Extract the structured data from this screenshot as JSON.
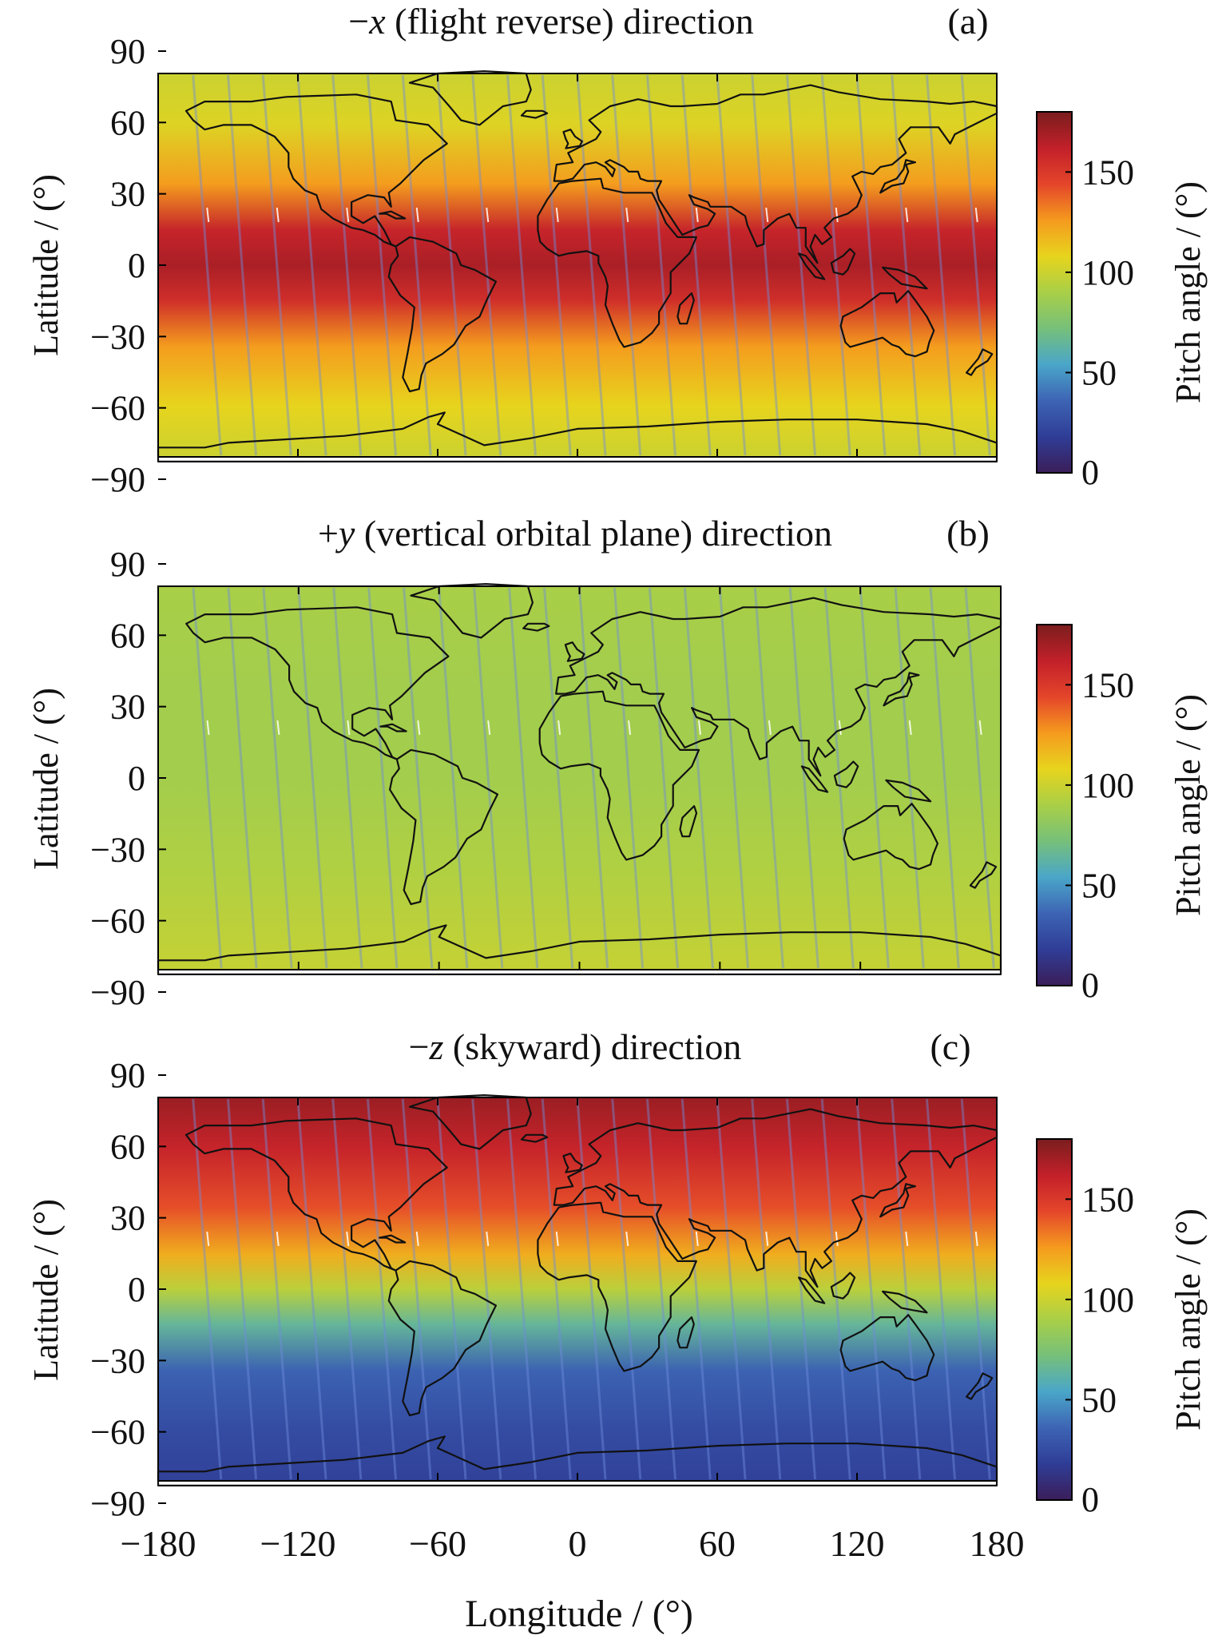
{
  "chart_data": [
    {
      "type": "heatmap",
      "title_prefix": "−",
      "title_var": "x",
      "title_rest": " (flight reverse) direction",
      "panel_label": "(a)",
      "ylabel": "Latitude / (°)",
      "xlim": [
        -180,
        180
      ],
      "ylim": [
        -90,
        90
      ],
      "field_bands": [
        {
          "lat": 82,
          "value": 100
        },
        {
          "lat": 60,
          "value": 105
        },
        {
          "lat": 35,
          "value": 125
        },
        {
          "lat": 15,
          "value": 160
        },
        {
          "lat": 0,
          "value": 168
        },
        {
          "lat": -15,
          "value": 155
        },
        {
          "lat": -35,
          "value": 125
        },
        {
          "lat": -60,
          "value": 108
        },
        {
          "lat": -82,
          "value": 100
        }
      ],
      "colorbar": {
        "label": "Pitch angle / (°)",
        "ticks": [
          "0",
          "50",
          "100",
          "150"
        ],
        "range": [
          0,
          180
        ]
      }
    },
    {
      "type": "heatmap",
      "title_prefix": "+",
      "title_var": "y",
      "title_rest": " (vertical orbital plane) direction",
      "panel_label": "(b)",
      "ylabel": "Latitude / (°)",
      "xlim": [
        -180,
        180
      ],
      "ylim": [
        -90,
        90
      ],
      "field_bands": [
        {
          "lat": 82,
          "value": 90
        },
        {
          "lat": 40,
          "value": 88
        },
        {
          "lat": 0,
          "value": 88
        },
        {
          "lat": -40,
          "value": 92
        },
        {
          "lat": -82,
          "value": 98
        }
      ],
      "colorbar": {
        "label": "Pitch angle / (°)",
        "ticks": [
          "0",
          "50",
          "100",
          "150"
        ],
        "range": [
          0,
          180
        ]
      }
    },
    {
      "type": "heatmap",
      "title_prefix": "−",
      "title_var": "z",
      "title_rest": " (skyward) direction",
      "panel_label": "(c)",
      "ylabel": "Latitude / (°)",
      "xlabel": "Longitude / (°)",
      "xticks": [
        "−180",
        "−120",
        "−60",
        "0",
        "60",
        "120",
        "180"
      ],
      "xlim": [
        -180,
        180
      ],
      "ylim": [
        -90,
        90
      ],
      "field_bands": [
        {
          "lat": 82,
          "value": 172
        },
        {
          "lat": 60,
          "value": 160
        },
        {
          "lat": 35,
          "value": 142
        },
        {
          "lat": 15,
          "value": 120
        },
        {
          "lat": 0,
          "value": 95
        },
        {
          "lat": -15,
          "value": 65
        },
        {
          "lat": -35,
          "value": 35
        },
        {
          "lat": -60,
          "value": 25
        },
        {
          "lat": -82,
          "value": 20
        }
      ],
      "colorbar": {
        "label": "Pitch angle / (°)",
        "ticks": [
          "0",
          "50",
          "100",
          "150"
        ],
        "range": [
          0,
          180
        ]
      }
    }
  ],
  "yticks": [
    "90",
    "60",
    "30",
    "0",
    "−30",
    "−60",
    "−90"
  ],
  "colormap": [
    "#3b1e5a",
    "#2f3d96",
    "#3d64b4",
    "#4aa6c9",
    "#76c07a",
    "#a9cf47",
    "#e7d41d",
    "#f59a1e",
    "#e4452a",
    "#c2202a",
    "#7a1d1d"
  ]
}
